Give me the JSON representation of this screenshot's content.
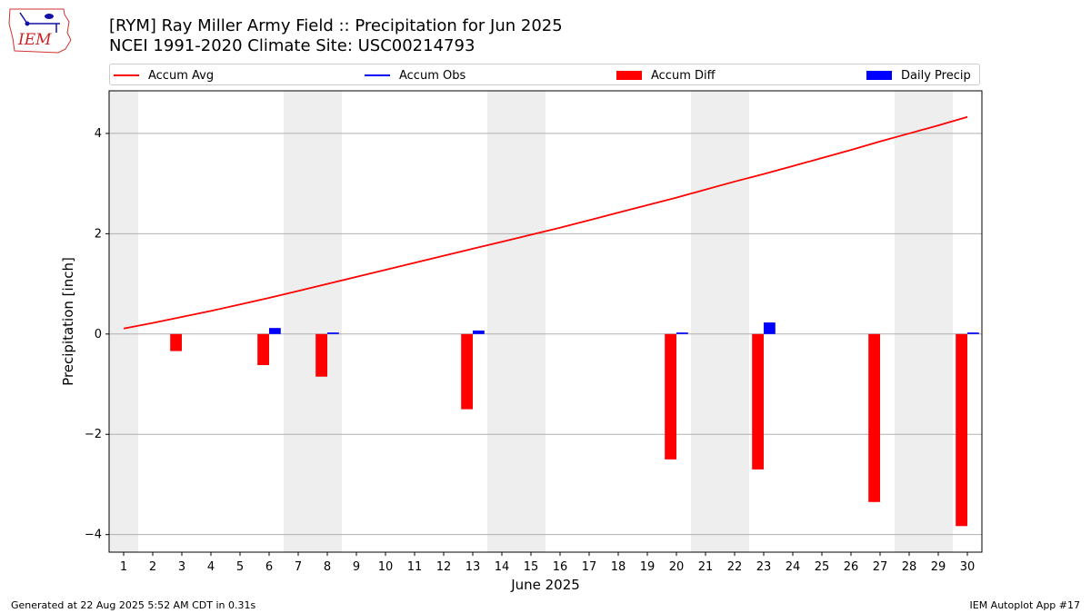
{
  "header": {
    "title_line1": "[RYM] Ray Miller Army Field :: Precipitation for Jun 2025",
    "title_line2": "NCEI 1991-2020 Climate Site: USC00214793",
    "logo_text": "IEM"
  },
  "legend": {
    "items": [
      {
        "label": "Accum Avg",
        "kind": "line",
        "color": "#ff0000"
      },
      {
        "label": "Accum Obs",
        "kind": "line",
        "color": "#0000ff"
      },
      {
        "label": "Accum Diff",
        "kind": "box",
        "color": "#ff0000"
      },
      {
        "label": "Daily Precip",
        "kind": "box",
        "color": "#0000ff"
      }
    ]
  },
  "footer": {
    "left": "Generated at 22 Aug 2025 5:52 AM CDT in 0.31s",
    "right": "IEM Autoplot App #17"
  },
  "chart_data": {
    "type": "bar",
    "xlabel": "June 2025",
    "ylabel": "Precipitation [inch]",
    "xlim": [
      0.5,
      30.5
    ],
    "ylim": [
      -4.35,
      4.85
    ],
    "yticks": [
      -4,
      -2,
      0,
      2,
      4
    ],
    "ytick_labels": [
      "−4",
      "−2",
      "0",
      "2",
      "4"
    ],
    "grid": true,
    "weekend_shading": [
      [
        1,
        1
      ],
      [
        7,
        8
      ],
      [
        14,
        15
      ],
      [
        21,
        22
      ],
      [
        28,
        29
      ]
    ],
    "x": [
      1,
      2,
      3,
      4,
      5,
      6,
      7,
      8,
      9,
      10,
      11,
      12,
      13,
      14,
      15,
      16,
      17,
      18,
      19,
      20,
      21,
      22,
      23,
      24,
      25,
      26,
      27,
      28,
      29,
      30
    ],
    "series": [
      {
        "name": "Accum Avg",
        "type": "line",
        "color": "#ff0000",
        "values": [
          0.11,
          0.22,
          0.34,
          0.46,
          0.59,
          0.72,
          0.86,
          1.0,
          1.14,
          1.28,
          1.42,
          1.56,
          1.7,
          1.84,
          1.98,
          2.12,
          2.27,
          2.42,
          2.57,
          2.72,
          2.88,
          3.04,
          3.19,
          3.35,
          3.51,
          3.67,
          3.84,
          4.0,
          4.16,
          4.33
        ]
      },
      {
        "name": "Accum Diff",
        "type": "bar",
        "color": "#ff0000",
        "points": [
          [
            3,
            -0.34
          ],
          [
            6,
            -0.62
          ],
          [
            8,
            -0.85
          ],
          [
            13,
            -1.5
          ],
          [
            20,
            -2.5
          ],
          [
            23,
            -2.7
          ],
          [
            27,
            -3.35
          ],
          [
            30,
            -3.83
          ]
        ]
      },
      {
        "name": "Daily Precip",
        "type": "bar",
        "color": "#0000ff",
        "points": [
          [
            6,
            0.12
          ],
          [
            8,
            0.03
          ],
          [
            13,
            0.07
          ],
          [
            20,
            0.03
          ],
          [
            23,
            0.23
          ],
          [
            30,
            0.03
          ]
        ]
      }
    ]
  }
}
